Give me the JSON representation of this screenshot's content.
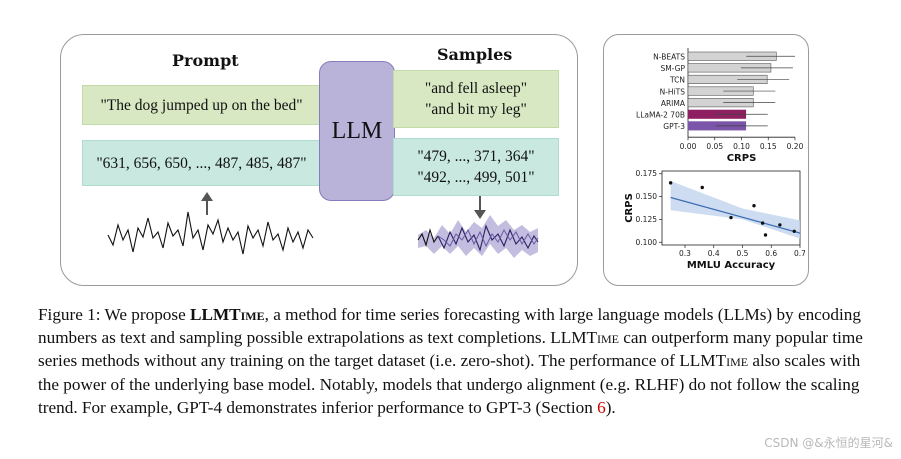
{
  "figure": {
    "prompt_header": "Prompt",
    "samples_header": "Samples",
    "llm_label": "LLM",
    "prompt_text": "\"The dog jumped up on the bed\"",
    "prompt_numbers": "\"631, 656, 650, ..., 487, 485, 487\"",
    "sample_text_1": "\"and fell asleep\"",
    "sample_text_2": "\"and bit my leg\"",
    "sample_numbers_1": "\"479, ..., 371, 364\"",
    "sample_numbers_2": "\"492, ..., 499, 501\""
  },
  "colors": {
    "text_box": "#d7e8c3",
    "number_box": "#c9e9e0",
    "llm_box": "#b9b3d9",
    "bar_gray": "#d3d3d3",
    "bar_llama": "#8e2062",
    "bar_gpt3": "#7a55a8",
    "regression_line": "#3a6db3",
    "band": "#c5d6ee",
    "sample_band": "#bdb6dc"
  },
  "chart_data": [
    {
      "type": "bar",
      "orientation": "horizontal",
      "categories": [
        "N-BEATS",
        "SM-GP",
        "TCN",
        "N-HiTS",
        "ARIMA",
        "LLaMA-2 70B",
        "GPT-3"
      ],
      "values": [
        0.165,
        0.155,
        0.148,
        0.122,
        0.122,
        0.108,
        0.108
      ],
      "xlim": [
        0.0,
        0.2
      ],
      "xticks": [
        "0.00",
        "0.05",
        "0.10",
        "0.15",
        "0.20"
      ],
      "xlabel": "CRPS",
      "ylabel": ""
    },
    {
      "type": "scatter",
      "x": [
        0.25,
        0.36,
        0.46,
        0.54,
        0.57,
        0.58,
        0.63,
        0.68
      ],
      "y": [
        0.165,
        0.16,
        0.127,
        0.14,
        0.121,
        0.108,
        0.119,
        0.112
      ],
      "trend": {
        "x": [
          0.25,
          0.7
        ],
        "y": [
          0.149,
          0.11
        ]
      },
      "xlim": [
        0.22,
        0.7
      ],
      "ylim": [
        0.097,
        0.178
      ],
      "xticks": [
        "0.3",
        "0.4",
        "0.5",
        "0.6",
        "0.7"
      ],
      "yticks": [
        "0.100",
        "0.125",
        "0.150",
        "0.175"
      ],
      "xlabel": "MMLU Accuracy",
      "ylabel": "CRPS"
    }
  ],
  "caption": {
    "lead": "Figure 1: We propose ",
    "name_big": "LLMT",
    "name_small": "ime",
    "part1": ", a method for time series forecasting with large language models (LLMs) by encoding numbers as text and sampling possible extrapolations as text completions. ",
    "part2": " can outperform many popular time series methods without any training on the target dataset (i.e. zero-shot). The performance of ",
    "part3": " also scales with the power of the underlying base model. Notably, models that undergo alignment (e.g. RLHF) do not follow the scaling trend. For example, GPT-4 demonstrates inferior performance to GPT-3 (Section ",
    "section_ref": "6",
    "part4": ")."
  },
  "watermark": "CSDN @&永恒的星河&"
}
